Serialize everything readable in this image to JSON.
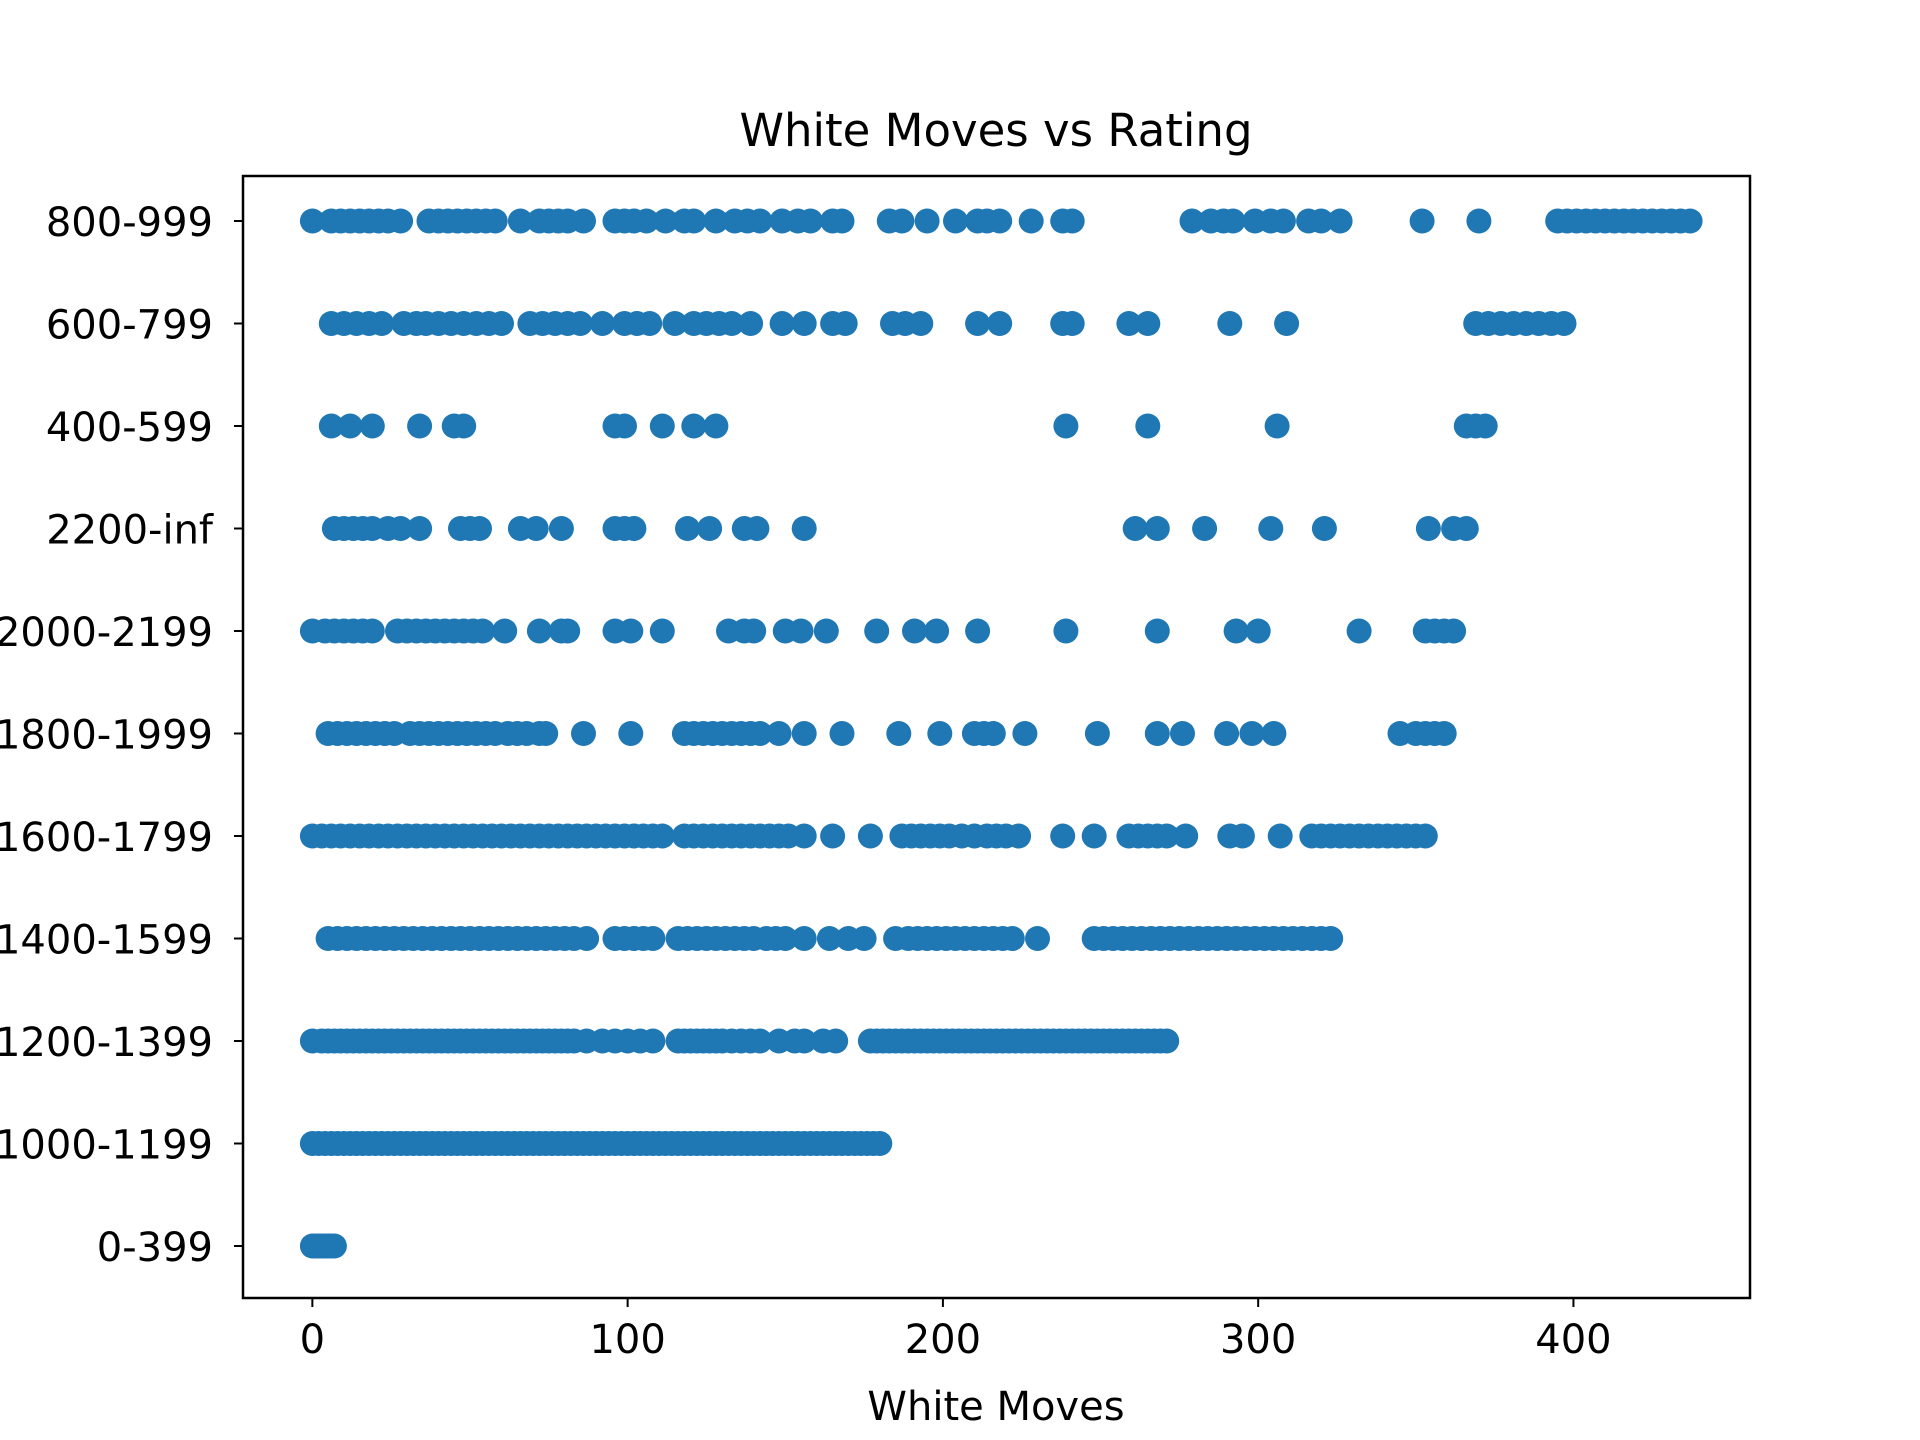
{
  "chart_data": {
    "type": "scatter",
    "title": "White Moves vs Rating",
    "xlabel": "White Moves",
    "ylabel": "",
    "xlim": [
      -22,
      456
    ],
    "x_ticks": [
      0,
      100,
      200,
      300,
      400
    ],
    "x_tick_labels": [
      "0",
      "100",
      "200",
      "300",
      "400"
    ],
    "categories": [
      "0-399",
      "1000-1199",
      "1200-1399",
      "1400-1599",
      "1600-1799",
      "1800-1999",
      "2000-2199",
      "2200-inf",
      "400-599",
      "600-799",
      "800-999"
    ],
    "marker_color": "#1f77b4",
    "grid": false,
    "legend": "none",
    "points": [
      {
        "category": "0-399",
        "x": [
          0,
          1,
          2,
          3,
          4,
          5,
          6,
          7
        ]
      },
      {
        "category": "1000-1199",
        "x": [
          0,
          2,
          4,
          6,
          8,
          10,
          12,
          14,
          16,
          18,
          20,
          22,
          24,
          26,
          28,
          30,
          32,
          34,
          36,
          38,
          40,
          42,
          44,
          46,
          48,
          50,
          52,
          54,
          56,
          58,
          60,
          62,
          64,
          66,
          68,
          70,
          72,
          74,
          76,
          78,
          80,
          82,
          84,
          86,
          88,
          90,
          92,
          94,
          96,
          98,
          100,
          102,
          104,
          106,
          108,
          110,
          112,
          114,
          116,
          118,
          120,
          122,
          124,
          126,
          128,
          130,
          132,
          134,
          136,
          138,
          140,
          142,
          144,
          146,
          148,
          150,
          152,
          154,
          156,
          158,
          160,
          162,
          164,
          166,
          168,
          170,
          172,
          174,
          176,
          178,
          180
        ]
      },
      {
        "category": "1200-1399",
        "x": [
          0,
          3,
          5,
          7,
          9,
          11,
          13,
          15,
          17,
          19,
          21,
          23,
          25,
          27,
          29,
          31,
          33,
          35,
          37,
          39,
          41,
          43,
          45,
          47,
          49,
          51,
          53,
          55,
          57,
          59,
          61,
          63,
          65,
          67,
          69,
          71,
          73,
          75,
          77,
          79,
          81,
          83,
          87,
          92,
          96,
          100,
          104,
          108,
          116,
          118,
          120,
          122,
          124,
          126,
          128,
          130,
          133,
          136,
          139,
          142,
          148,
          153,
          156,
          162,
          166,
          177,
          179,
          181,
          183,
          185,
          187,
          189,
          191,
          193,
          195,
          197,
          199,
          201,
          203,
          205,
          207,
          209,
          211,
          213,
          215,
          217,
          219,
          221,
          223,
          225,
          227,
          229,
          231,
          233,
          235,
          237,
          239,
          241,
          243,
          245,
          247,
          249,
          251,
          253,
          255,
          257,
          259,
          261,
          263,
          265,
          267,
          269,
          271
        ]
      },
      {
        "category": "1400-1599",
        "x": [
          5,
          8,
          11,
          14,
          17,
          20,
          23,
          26,
          29,
          32,
          35,
          38,
          41,
          44,
          47,
          50,
          53,
          56,
          59,
          62,
          65,
          68,
          71,
          74,
          77,
          80,
          83,
          87,
          96,
          99,
          102,
          105,
          108,
          116,
          119,
          122,
          125,
          128,
          131,
          134,
          137,
          140,
          144,
          147,
          150,
          156,
          164,
          170,
          175,
          185,
          189,
          192,
          195,
          198,
          201,
          204,
          207,
          210,
          213,
          216,
          219,
          222,
          230,
          248,
          251,
          254,
          257,
          260,
          263,
          266,
          269,
          272,
          275,
          278,
          281,
          284,
          287,
          290,
          293,
          296,
          299,
          302,
          305,
          308,
          311,
          314,
          317,
          320,
          323
        ]
      },
      {
        "category": "1600-1799",
        "x": [
          0,
          3,
          6,
          9,
          12,
          15,
          18,
          21,
          24,
          27,
          30,
          33,
          36,
          39,
          42,
          45,
          48,
          51,
          54,
          57,
          60,
          63,
          66,
          69,
          72,
          75,
          78,
          81,
          84,
          87,
          90,
          93,
          96,
          99,
          102,
          105,
          108,
          111,
          118,
          121,
          124,
          127,
          130,
          133,
          136,
          139,
          142,
          145,
          148,
          151,
          156,
          165,
          177,
          187,
          190,
          193,
          196,
          199,
          202,
          206,
          210,
          214,
          217,
          220,
          224,
          238,
          248,
          259,
          262,
          265,
          268,
          271,
          277,
          291,
          295,
          307,
          317,
          320,
          323,
          326,
          329,
          332,
          335,
          338,
          341,
          344,
          347,
          350,
          353
        ]
      },
      {
        "category": "1800-1999",
        "x": [
          5,
          8,
          11,
          14,
          17,
          20,
          23,
          26,
          31,
          34,
          37,
          40,
          43,
          46,
          49,
          52,
          55,
          58,
          62,
          65,
          68,
          72,
          74,
          86,
          101,
          118,
          121,
          124,
          127,
          130,
          133,
          136,
          139,
          142,
          148,
          156,
          168,
          186,
          199,
          210,
          213,
          216,
          226,
          249,
          268,
          276,
          290,
          298,
          305,
          345,
          350,
          353,
          356,
          359
        ]
      },
      {
        "category": "2000-2199",
        "x": [
          0,
          4,
          7,
          10,
          13,
          16,
          19,
          27,
          30,
          33,
          36,
          39,
          42,
          45,
          48,
          51,
          54,
          61,
          72,
          79,
          81,
          96,
          101,
          111,
          132,
          137,
          140,
          150,
          155,
          163,
          179,
          191,
          198,
          211,
          239,
          268,
          293,
          300,
          332,
          353,
          356,
          359,
          362
        ]
      },
      {
        "category": "2200-inf",
        "x": [
          7,
          10,
          13,
          16,
          19,
          24,
          28,
          34,
          47,
          50,
          53,
          66,
          71,
          79,
          96,
          99,
          102,
          119,
          126,
          137,
          141,
          156,
          261,
          268,
          283,
          304,
          321,
          354,
          362,
          366
        ]
      },
      {
        "category": "400-599",
        "x": [
          6,
          12,
          19,
          34,
          45,
          48,
          96,
          99,
          111,
          121,
          128,
          239,
          265,
          306,
          366,
          369,
          372
        ]
      },
      {
        "category": "600-799",
        "x": [
          6,
          10,
          14,
          18,
          22,
          29,
          33,
          36,
          40,
          44,
          48,
          52,
          56,
          60,
          69,
          73,
          77,
          81,
          85,
          92,
          99,
          103,
          107,
          115,
          121,
          125,
          129,
          133,
          139,
          149,
          156,
          165,
          169,
          184,
          188,
          193,
          211,
          218,
          238,
          241,
          259,
          265,
          291,
          309,
          369,
          373,
          377,
          381,
          385,
          389,
          393,
          397
        ]
      },
      {
        "category": "800-999",
        "x": [
          0,
          6,
          9,
          12,
          15,
          18,
          21,
          24,
          28,
          37,
          40,
          43,
          46,
          49,
          52,
          55,
          58,
          66,
          72,
          75,
          78,
          81,
          86,
          96,
          99,
          102,
          106,
          112,
          118,
          121,
          128,
          134,
          138,
          142,
          149,
          154,
          158,
          165,
          168,
          183,
          187,
          195,
          204,
          211,
          214,
          218,
          228,
          238,
          241,
          279,
          285,
          289,
          292,
          299,
          304,
          308,
          316,
          320,
          326,
          352,
          370,
          395,
          398,
          401,
          404,
          407,
          410,
          413,
          416,
          419,
          422,
          425,
          428,
          431,
          434,
          437
        ]
      }
    ]
  }
}
